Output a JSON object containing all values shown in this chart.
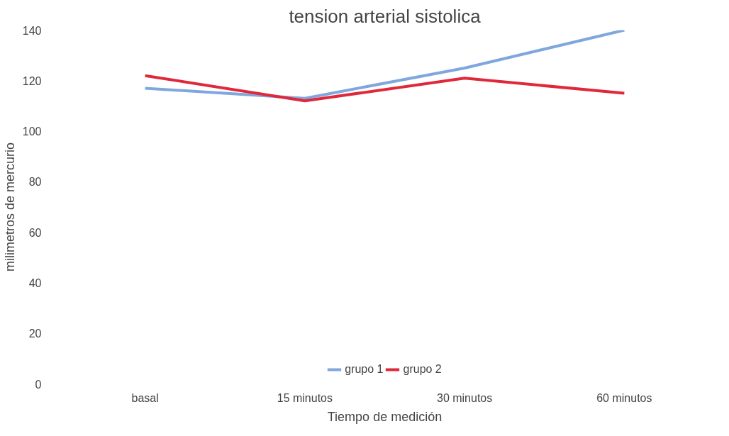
{
  "chart_data": {
    "type": "line",
    "title": "tension arterial sistolica",
    "xlabel": "Tiempo de medición",
    "ylabel": "milimetros de mercurio",
    "categories": [
      "basal",
      "15 minutos",
      "30 minutos",
      "60 minutos"
    ],
    "series": [
      {
        "name": "grupo 1",
        "color": "#7fa7de",
        "values": [
          117,
          113,
          125,
          140
        ]
      },
      {
        "name": "grupo 2",
        "color": "#e0283a",
        "values": [
          122,
          112,
          121,
          115
        ]
      }
    ],
    "ylim": [
      0,
      140
    ],
    "yticks": [
      0,
      20,
      40,
      60,
      80,
      100,
      120,
      140
    ],
    "grid": false,
    "legend": "bottom",
    "marker": "none",
    "line_style": "solid"
  }
}
